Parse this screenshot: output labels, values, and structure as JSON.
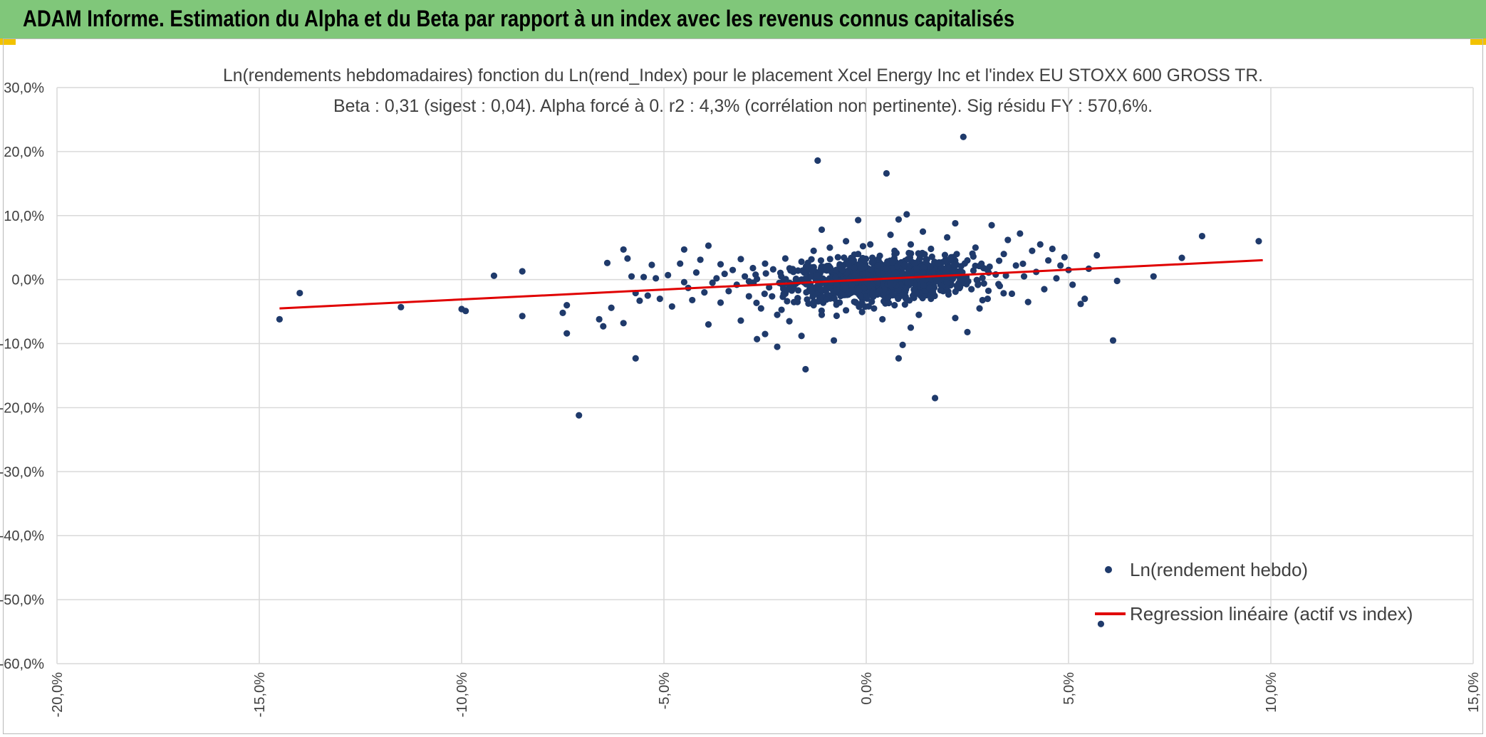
{
  "header": {
    "title": "ADAM Informe. Estimation du Alpha et du Beta par rapport à un index avec les revenus connus capitalisés"
  },
  "colors": {
    "header_bg": "#80c77a",
    "points": "#1f3a6b",
    "regression": "#e00000",
    "grid": "#d9d9d9"
  },
  "chart_data": {
    "type": "scatter",
    "title": "Ln(rendements hebdomadaires) fonction du Ln(rend_Index) pour le placement Xcel Energy Inc et l'index EU STOXX 600 GROSS TR.",
    "subtitle": "Beta : 0,31 (sigest : 0,04). Alpha forcé à 0. r2 : 4,3% (corrélation non pertinente). Sig résidu FY : 570,6%.",
    "xlim": [
      -0.2,
      0.15
    ],
    "ylim": [
      -0.6,
      0.3
    ],
    "x_ticks": [
      -0.2,
      -0.15,
      -0.1,
      -0.05,
      0.0,
      0.05,
      0.1,
      0.15
    ],
    "x_tick_labels": [
      "-20,0%",
      "-15,0%",
      "-10,0%",
      "-5,0%",
      "0,0%",
      "5,0%",
      "10,0%",
      "15,0%"
    ],
    "y_ticks": [
      0.3,
      0.2,
      0.1,
      0.0,
      -0.1,
      -0.2,
      -0.3,
      -0.4,
      -0.5,
      -0.6
    ],
    "y_tick_labels": [
      "30,0%",
      "20,0%",
      "10,0%",
      "0,0%",
      "-10,0%",
      "-20,0%",
      "-30,0%",
      "-40,0%",
      "-50,0%",
      "-60,0%"
    ],
    "legend": {
      "position": "bottom-right",
      "points_label": "Ln(rendement hebdo)",
      "line_label": "Regression linéaire (actif vs index)"
    },
    "regression": {
      "beta": 0.31,
      "alpha": 0.0,
      "x_range": [
        -0.145,
        0.098
      ]
    },
    "series": [
      {
        "name": "Ln(rendement hebdo)",
        "points": [
          [
            -0.145,
            -0.062
          ],
          [
            -0.14,
            -0.021
          ],
          [
            -0.115,
            -0.043
          ],
          [
            -0.1,
            -0.046
          ],
          [
            -0.099,
            -0.049
          ],
          [
            -0.092,
            0.006
          ],
          [
            -0.085,
            0.013
          ],
          [
            -0.085,
            -0.057
          ],
          [
            -0.075,
            -0.052
          ],
          [
            -0.074,
            -0.04
          ],
          [
            -0.074,
            -0.084
          ],
          [
            -0.071,
            -0.212
          ],
          [
            -0.066,
            -0.062
          ],
          [
            -0.065,
            -0.073
          ],
          [
            -0.064,
            0.026
          ],
          [
            -0.063,
            -0.044
          ],
          [
            -0.06,
            0.047
          ],
          [
            -0.06,
            -0.068
          ],
          [
            -0.059,
            0.033
          ],
          [
            -0.058,
            0.005
          ],
          [
            -0.057,
            -0.021
          ],
          [
            -0.057,
            -0.123
          ],
          [
            -0.056,
            -0.033
          ],
          [
            -0.055,
            0.004
          ],
          [
            -0.054,
            -0.025
          ],
          [
            -0.053,
            0.023
          ],
          [
            -0.052,
            0.002
          ],
          [
            -0.051,
            -0.03
          ],
          [
            -0.049,
            0.007
          ],
          [
            -0.048,
            -0.042
          ],
          [
            -0.046,
            0.025
          ],
          [
            -0.045,
            -0.004
          ],
          [
            -0.045,
            0.047
          ],
          [
            -0.044,
            -0.013
          ],
          [
            -0.043,
            -0.032
          ],
          [
            -0.042,
            0.011
          ],
          [
            -0.041,
            0.031
          ],
          [
            -0.04,
            -0.02
          ],
          [
            -0.039,
            0.053
          ],
          [
            -0.039,
            -0.07
          ],
          [
            -0.038,
            -0.005
          ],
          [
            -0.037,
            0.002
          ],
          [
            -0.036,
            -0.036
          ],
          [
            -0.036,
            0.024
          ],
          [
            -0.035,
            0.009
          ],
          [
            -0.034,
            -0.018
          ],
          [
            -0.033,
            0.015
          ],
          [
            -0.032,
            -0.008
          ],
          [
            -0.031,
            0.032
          ],
          [
            -0.031,
            -0.064
          ],
          [
            -0.03,
            0.005
          ],
          [
            -0.029,
            -0.026
          ],
          [
            -0.028,
            0.018
          ],
          [
            -0.027,
            -0.093
          ],
          [
            -0.027,
            0.001
          ],
          [
            -0.026,
            -0.045
          ],
          [
            -0.025,
            0.025
          ],
          [
            -0.025,
            -0.085
          ],
          [
            -0.024,
            -0.012
          ],
          [
            -0.023,
            0.016
          ],
          [
            -0.022,
            -0.055
          ],
          [
            -0.022,
            -0.105
          ],
          [
            -0.021,
            0.005
          ],
          [
            -0.02,
            0.033
          ],
          [
            -0.02,
            -0.022
          ],
          [
            -0.019,
            -0.065
          ],
          [
            -0.018,
            0.012
          ],
          [
            -0.017,
            -0.035
          ],
          [
            -0.016,
            0.028
          ],
          [
            -0.016,
            -0.088
          ],
          [
            -0.015,
            -0.14
          ],
          [
            -0.015,
            0.0
          ],
          [
            -0.014,
            -0.015
          ],
          [
            -0.013,
            0.045
          ],
          [
            -0.013,
            -0.04
          ],
          [
            -0.012,
            0.01
          ],
          [
            -0.012,
            0.186
          ],
          [
            -0.011,
            0.078
          ],
          [
            -0.011,
            -0.055
          ],
          [
            -0.01,
            0.02
          ],
          [
            -0.009,
            -0.028
          ],
          [
            -0.009,
            0.05
          ],
          [
            -0.008,
            0.003
          ],
          [
            -0.008,
            -0.095
          ],
          [
            -0.007,
            0.035
          ],
          [
            -0.007,
            -0.018
          ],
          [
            -0.006,
            0.012
          ],
          [
            -0.005,
            0.06
          ],
          [
            -0.005,
            -0.048
          ],
          [
            -0.004,
            0.025
          ],
          [
            -0.003,
            -0.008
          ],
          [
            -0.002,
            0.093
          ],
          [
            -0.002,
            0.04
          ],
          [
            -0.001,
            -0.03
          ],
          [
            0.0,
            0.015
          ],
          [
            0.001,
            0.055
          ],
          [
            0.002,
            -0.02
          ],
          [
            0.003,
            0.032
          ],
          [
            0.004,
            -0.062
          ],
          [
            0.005,
            0.008
          ],
          [
            0.005,
            0.166
          ],
          [
            0.006,
            0.07
          ],
          [
            0.007,
            -0.04
          ],
          [
            0.007,
            0.045
          ],
          [
            0.008,
            -0.123
          ],
          [
            0.008,
            0.094
          ],
          [
            0.009,
            0.02
          ],
          [
            0.009,
            -0.102
          ],
          [
            0.01,
            0.102
          ],
          [
            0.011,
            0.055
          ],
          [
            0.011,
            -0.075
          ],
          [
            0.012,
            0.012
          ],
          [
            0.013,
            0.03
          ],
          [
            0.013,
            -0.055
          ],
          [
            0.014,
            0.075
          ],
          [
            0.015,
            0.005
          ],
          [
            0.016,
            -0.03
          ],
          [
            0.016,
            0.048
          ],
          [
            0.017,
            -0.185
          ],
          [
            0.018,
            0.02
          ],
          [
            0.019,
            -0.018
          ],
          [
            0.02,
            0.066
          ],
          [
            0.021,
            0.035
          ],
          [
            0.022,
            -0.06
          ],
          [
            0.022,
            0.088
          ],
          [
            0.023,
            0.005
          ],
          [
            0.024,
            0.223
          ],
          [
            0.025,
            -0.082
          ],
          [
            0.025,
            0.03
          ],
          [
            0.026,
            -0.015
          ],
          [
            0.027,
            0.05
          ],
          [
            0.028,
            -0.045
          ],
          [
            0.029,
            0.018
          ],
          [
            0.03,
            -0.03
          ],
          [
            0.031,
            0.085
          ],
          [
            0.032,
            0.008
          ],
          [
            0.033,
            -0.01
          ],
          [
            0.034,
            0.04
          ],
          [
            0.035,
            0.062
          ],
          [
            0.036,
            -0.022
          ],
          [
            0.037,
            0.022
          ],
          [
            0.038,
            0.072
          ],
          [
            0.039,
            0.005
          ],
          [
            0.04,
            -0.035
          ],
          [
            0.041,
            0.045
          ],
          [
            0.042,
            0.012
          ],
          [
            0.043,
            0.055
          ],
          [
            0.044,
            -0.015
          ],
          [
            0.045,
            0.03
          ],
          [
            0.046,
            0.048
          ],
          [
            0.047,
            0.002
          ],
          [
            0.048,
            0.022
          ],
          [
            0.049,
            0.035
          ],
          [
            0.05,
            0.015
          ],
          [
            0.051,
            -0.008
          ],
          [
            0.053,
            -0.038
          ],
          [
            0.054,
            -0.03
          ],
          [
            0.055,
            0.017
          ],
          [
            0.057,
            0.038
          ],
          [
            0.058,
            -0.538
          ],
          [
            0.061,
            -0.095
          ],
          [
            0.062,
            -0.002
          ],
          [
            0.071,
            0.005
          ],
          [
            0.078,
            0.034
          ],
          [
            0.083,
            0.068
          ],
          [
            0.097,
            0.06
          ]
        ]
      }
    ]
  }
}
